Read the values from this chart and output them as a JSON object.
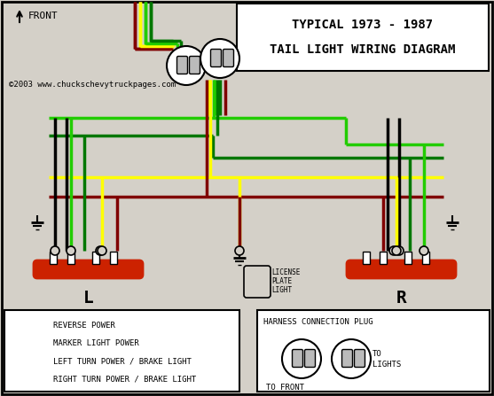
{
  "bg": "#d4d0c8",
  "white": "#ffffff",
  "title1": "TYPICAL 1973 - 1987",
  "title2": "TAIL LIGHT WIRING DIAGRAM",
  "copyright": "©2003 www.chuckschevytruckpages.com",
  "c_gb": "#22cc00",
  "c_gd": "#007700",
  "c_y": "#ffff00",
  "c_dr": "#800000",
  "c_bk": "#000000",
  "c_red": "#cc2200",
  "legend": [
    {
      "c": "#22cc00",
      "t": "REVERSE POWER"
    },
    {
      "c": "#800000",
      "t": "MARKER LIGHT POWER"
    },
    {
      "c": "#ffff00",
      "t": "LEFT TURN POWER / BRAKE LIGHT"
    },
    {
      "c": "#007700",
      "t": "RIGHT TURN POWER / BRAKE LIGHT"
    }
  ]
}
